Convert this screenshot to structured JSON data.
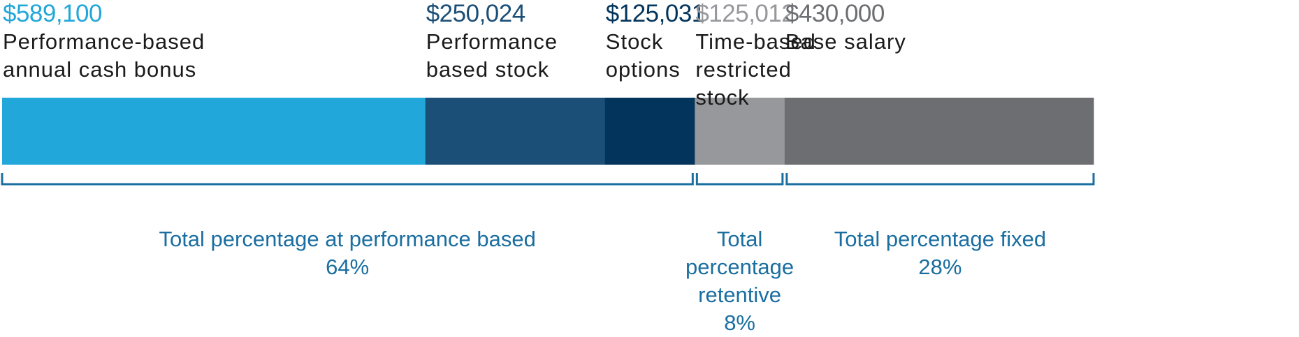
{
  "chart_data": {
    "type": "bar",
    "orientation": "horizontal-stacked",
    "series": [
      {
        "name": "Performance-based annual cash bonus",
        "value": 589100,
        "value_label": "$589,100",
        "name_lines": [
          "Performance-based",
          "annual cash bonus"
        ],
        "color": "#21a7d9",
        "value_color": "#21a7d9"
      },
      {
        "name": "Performance based stock",
        "value": 250024,
        "value_label": "$250,024",
        "name_lines": [
          "Performance",
          "based stock"
        ],
        "color": "#1c4f77",
        "value_color": "#1c4f77"
      },
      {
        "name": "Stock options",
        "value": 125031,
        "value_label": "$125,031",
        "name_lines": [
          "Stock",
          "options"
        ],
        "color": "#02345c",
        "value_color": "#02345c"
      },
      {
        "name": "Time-based restricted stock",
        "value": 125012,
        "value_label": "$125,012",
        "name_lines": [
          "Time-based",
          "restricted",
          "stock"
        ],
        "color": "#97989c",
        "value_color": "#97989c"
      },
      {
        "name": "Base salary",
        "value": 430000,
        "value_label": "$430,000",
        "name_lines": [
          "Base salary"
        ],
        "color": "#6d6e71",
        "value_color": "#6d6e71"
      }
    ],
    "groups": [
      {
        "label_lines": [
          "Total percentage at performance based",
          "64%"
        ],
        "start": 0,
        "end": 2
      },
      {
        "label_lines": [
          "Total",
          "percentage",
          "retentive",
          "8%"
        ],
        "start": 3,
        "end": 3
      },
      {
        "label_lines": [
          "Total percentage fixed",
          "28%"
        ],
        "start": 4,
        "end": 4
      }
    ],
    "bracket_color": "#1a6ea0"
  }
}
